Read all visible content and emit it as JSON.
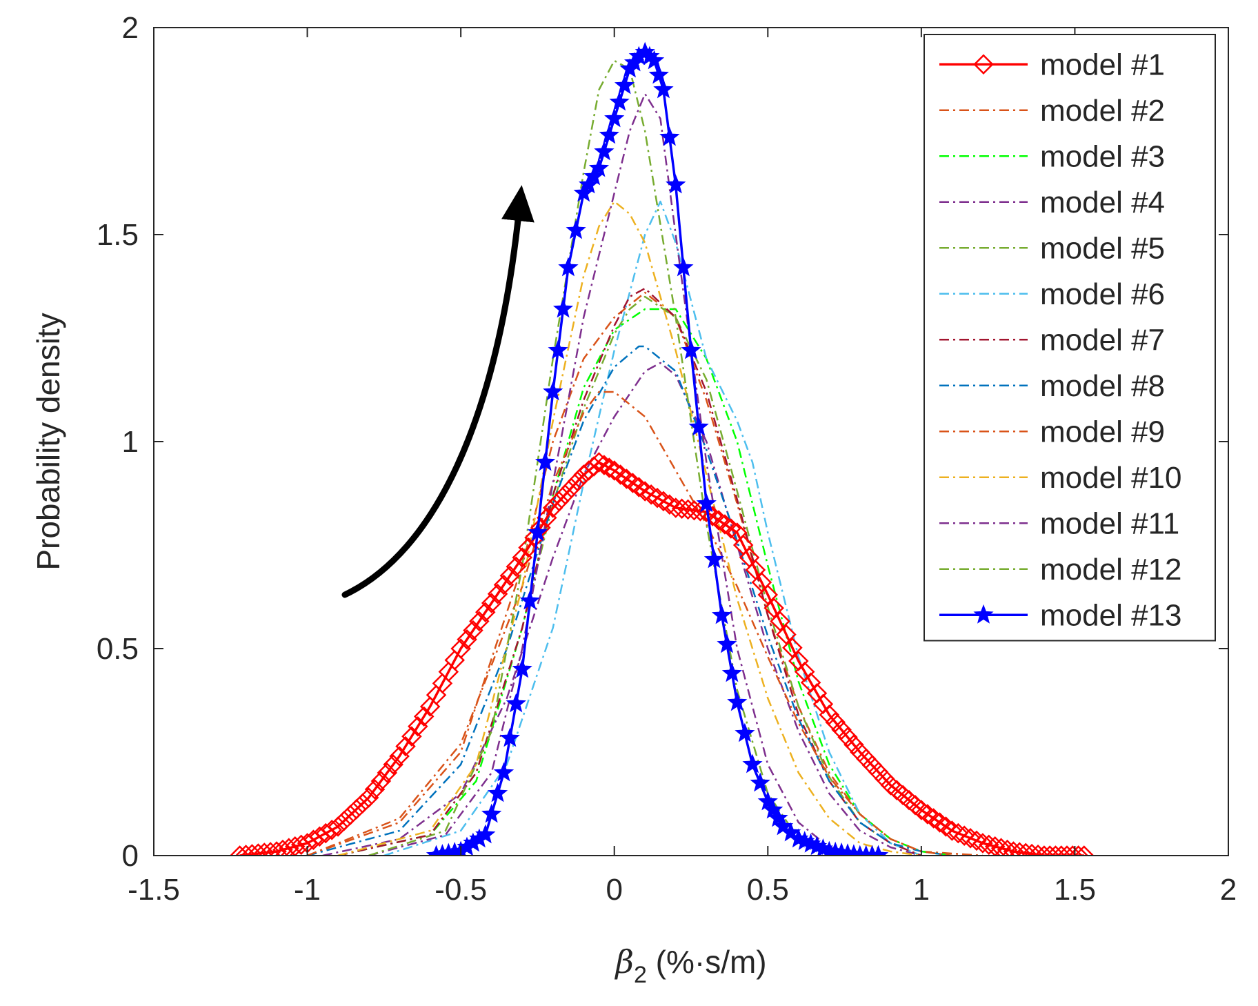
{
  "chart_data": {
    "type": "line",
    "xlabel_symbol": "β",
    "xlabel_subscript": "2",
    "xlabel_unit": " (%·s/m)",
    "ylabel": "Probability density",
    "xlim": [
      -1.5,
      2
    ],
    "ylim": [
      0,
      2
    ],
    "xticks": [
      -1.5,
      -1,
      -0.5,
      0,
      0.5,
      1,
      1.5,
      2
    ],
    "xtick_labels": [
      "-1.5",
      "-1",
      "-0.5",
      "0",
      "0.5",
      "1",
      "1.5",
      "2"
    ],
    "yticks": [
      0,
      0.5,
      1,
      1.5,
      2
    ],
    "ytick_labels": [
      "0",
      "0.5",
      "1",
      "1.5",
      "2"
    ],
    "grid": false,
    "legend_position": "top-right",
    "annotation": "curved black arrow pointing upward (peak increases from model #1 to model #13)",
    "series": [
      {
        "name": "model #1",
        "color": "#ff0000",
        "style": "solid",
        "marker": "diamond",
        "x": [
          -1.22,
          -1.1,
          -1.0,
          -0.9,
          -0.8,
          -0.7,
          -0.6,
          -0.5,
          -0.4,
          -0.3,
          -0.2,
          -0.1,
          -0.05,
          0.0,
          0.1,
          0.2,
          0.3,
          0.4,
          0.5,
          0.6,
          0.7,
          0.8,
          0.9,
          1.0,
          1.1,
          1.2,
          1.3,
          1.4,
          1.53
        ],
        "y": [
          0.0,
          0.01,
          0.03,
          0.07,
          0.14,
          0.24,
          0.36,
          0.5,
          0.61,
          0.72,
          0.84,
          0.92,
          0.95,
          0.93,
          0.88,
          0.84,
          0.83,
          0.78,
          0.63,
          0.47,
          0.34,
          0.25,
          0.17,
          0.11,
          0.06,
          0.03,
          0.01,
          0.0,
          0.0
        ]
      },
      {
        "name": "model #2",
        "color": "#d95319",
        "style": "dashdot",
        "x": [
          -1.0,
          -0.7,
          -0.5,
          -0.3,
          -0.2,
          -0.1,
          0.0,
          0.1,
          0.2,
          0.3,
          0.4,
          0.5,
          0.6,
          0.7,
          0.8,
          0.9,
          1.0,
          1.2
        ],
        "y": [
          0.0,
          0.08,
          0.25,
          0.7,
          1.0,
          1.2,
          1.3,
          1.36,
          1.3,
          1.1,
          0.85,
          0.58,
          0.36,
          0.2,
          0.1,
          0.04,
          0.01,
          0.0
        ]
      },
      {
        "name": "model #3",
        "color": "#00ff00",
        "style": "dashdot",
        "x": [
          -0.9,
          -0.6,
          -0.45,
          -0.3,
          -0.2,
          -0.1,
          0.0,
          0.1,
          0.2,
          0.3,
          0.4,
          0.5,
          0.6,
          0.7,
          0.8,
          0.9,
          1.0,
          1.1
        ],
        "y": [
          0.0,
          0.05,
          0.18,
          0.55,
          0.87,
          1.13,
          1.27,
          1.32,
          1.32,
          1.2,
          1.0,
          0.7,
          0.42,
          0.22,
          0.1,
          0.04,
          0.01,
          0.0
        ]
      },
      {
        "name": "model #4",
        "color": "#7e2f8e",
        "style": "dashdot",
        "x": [
          -0.95,
          -0.7,
          -0.5,
          -0.35,
          -0.2,
          -0.1,
          0.0,
          0.1,
          0.15,
          0.2,
          0.3,
          0.4,
          0.5,
          0.6,
          0.7,
          0.8,
          0.9,
          1.0
        ],
        "y": [
          0.0,
          0.04,
          0.15,
          0.38,
          0.72,
          0.92,
          1.06,
          1.17,
          1.19,
          1.16,
          1.0,
          0.75,
          0.5,
          0.3,
          0.15,
          0.06,
          0.02,
          0.0
        ]
      },
      {
        "name": "model #5",
        "color": "#77ac30",
        "style": "dashdot",
        "x": [
          -0.9,
          -0.6,
          -0.45,
          -0.3,
          -0.2,
          -0.1,
          0.0,
          0.05,
          0.1,
          0.2,
          0.3,
          0.4,
          0.5,
          0.6,
          0.7,
          0.8,
          0.9,
          1.0
        ],
        "y": [
          0.0,
          0.05,
          0.2,
          0.55,
          0.85,
          1.08,
          1.26,
          1.32,
          1.35,
          1.3,
          1.15,
          0.88,
          0.6,
          0.36,
          0.19,
          0.08,
          0.03,
          0.0
        ]
      },
      {
        "name": "model #6",
        "color": "#4dbeee",
        "style": "dashdot",
        "x": [
          -0.75,
          -0.5,
          -0.35,
          -0.2,
          -0.1,
          0.0,
          0.1,
          0.15,
          0.2,
          0.3,
          0.4,
          0.45,
          0.5,
          0.6,
          0.7,
          0.8,
          0.9,
          1.0
        ],
        "y": [
          0.0,
          0.06,
          0.22,
          0.55,
          0.9,
          1.22,
          1.5,
          1.58,
          1.48,
          1.2,
          1.05,
          0.95,
          0.78,
          0.48,
          0.25,
          0.1,
          0.03,
          0.0
        ]
      },
      {
        "name": "model #7",
        "color": "#a2142f",
        "style": "dashdot",
        "x": [
          -0.9,
          -0.6,
          -0.45,
          -0.3,
          -0.2,
          -0.1,
          0.0,
          0.05,
          0.1,
          0.2,
          0.3,
          0.4,
          0.5,
          0.6,
          0.7,
          0.8,
          0.9,
          1.0
        ],
        "y": [
          0.0,
          0.05,
          0.2,
          0.55,
          0.87,
          1.1,
          1.28,
          1.35,
          1.37,
          1.3,
          1.12,
          0.86,
          0.58,
          0.34,
          0.18,
          0.08,
          0.03,
          0.0
        ]
      },
      {
        "name": "model #8",
        "color": "#0072bd",
        "style": "dashdot",
        "x": [
          -1.0,
          -0.7,
          -0.5,
          -0.35,
          -0.2,
          -0.1,
          0.0,
          0.08,
          0.1,
          0.2,
          0.3,
          0.4,
          0.5,
          0.6,
          0.7,
          0.8,
          0.9,
          1.0,
          1.1
        ],
        "y": [
          0.0,
          0.06,
          0.22,
          0.5,
          0.85,
          1.05,
          1.18,
          1.23,
          1.23,
          1.17,
          0.98,
          0.76,
          0.53,
          0.33,
          0.18,
          0.08,
          0.03,
          0.01,
          0.0
        ]
      },
      {
        "name": "model #9",
        "color": "#d95319",
        "style": "dashdot",
        "x": [
          -1.0,
          -0.7,
          -0.5,
          -0.3,
          -0.2,
          -0.1,
          -0.05,
          0.0,
          0.1,
          0.2,
          0.3,
          0.4,
          0.5,
          0.6,
          0.7,
          0.8,
          0.9,
          1.0,
          1.1
        ],
        "y": [
          0.0,
          0.09,
          0.27,
          0.65,
          0.9,
          1.07,
          1.12,
          1.12,
          1.06,
          0.93,
          0.8,
          0.65,
          0.48,
          0.32,
          0.19,
          0.1,
          0.04,
          0.01,
          0.0
        ]
      },
      {
        "name": "model #10",
        "color": "#edb120",
        "style": "dashdot",
        "x": [
          -0.9,
          -0.6,
          -0.45,
          -0.3,
          -0.2,
          -0.1,
          -0.05,
          0.0,
          0.05,
          0.1,
          0.2,
          0.3,
          0.4,
          0.5,
          0.6,
          0.7,
          0.8,
          0.9,
          1.0
        ],
        "y": [
          0.0,
          0.06,
          0.22,
          0.65,
          1.05,
          1.4,
          1.52,
          1.58,
          1.55,
          1.48,
          1.22,
          0.92,
          0.62,
          0.38,
          0.2,
          0.09,
          0.03,
          0.01,
          0.0
        ]
      },
      {
        "name": "model #11",
        "color": "#7e2f8e",
        "style": "dashdot",
        "x": [
          -0.8,
          -0.55,
          -0.4,
          -0.3,
          -0.2,
          -0.1,
          0.0,
          0.05,
          0.1,
          0.15,
          0.2,
          0.3,
          0.4,
          0.5,
          0.6,
          0.7,
          0.8
        ],
        "y": [
          0.0,
          0.05,
          0.2,
          0.5,
          0.9,
          1.3,
          1.6,
          1.75,
          1.84,
          1.78,
          1.5,
          0.95,
          0.5,
          0.22,
          0.08,
          0.02,
          0.0
        ]
      },
      {
        "name": "model #12",
        "color": "#77ac30",
        "style": "dashdot",
        "x": [
          -0.8,
          -0.55,
          -0.4,
          -0.3,
          -0.2,
          -0.1,
          -0.05,
          0.0,
          0.05,
          0.1,
          0.2,
          0.3,
          0.4,
          0.5,
          0.6,
          0.7
        ],
        "y": [
          0.0,
          0.06,
          0.3,
          0.7,
          1.2,
          1.65,
          1.85,
          1.92,
          1.9,
          1.75,
          1.3,
          0.8,
          0.4,
          0.15,
          0.04,
          0.0
        ]
      },
      {
        "name": "model #13",
        "color": "#0000ff",
        "style": "solid",
        "marker": "star",
        "x": [
          -0.58,
          -0.5,
          -0.42,
          -0.36,
          -0.3,
          -0.25,
          -0.2,
          -0.15,
          -0.1,
          -0.05,
          0.0,
          0.05,
          0.08,
          0.1,
          0.13,
          0.16,
          0.2,
          0.25,
          0.3,
          0.35,
          0.4,
          0.45,
          0.5,
          0.55,
          0.6,
          0.7,
          0.8,
          0.86
        ],
        "y": [
          0.0,
          0.01,
          0.05,
          0.2,
          0.45,
          0.78,
          1.12,
          1.42,
          1.6,
          1.66,
          1.78,
          1.9,
          1.93,
          1.94,
          1.92,
          1.85,
          1.62,
          1.22,
          0.85,
          0.58,
          0.37,
          0.22,
          0.13,
          0.07,
          0.04,
          0.01,
          0.0,
          0.0
        ]
      }
    ]
  }
}
